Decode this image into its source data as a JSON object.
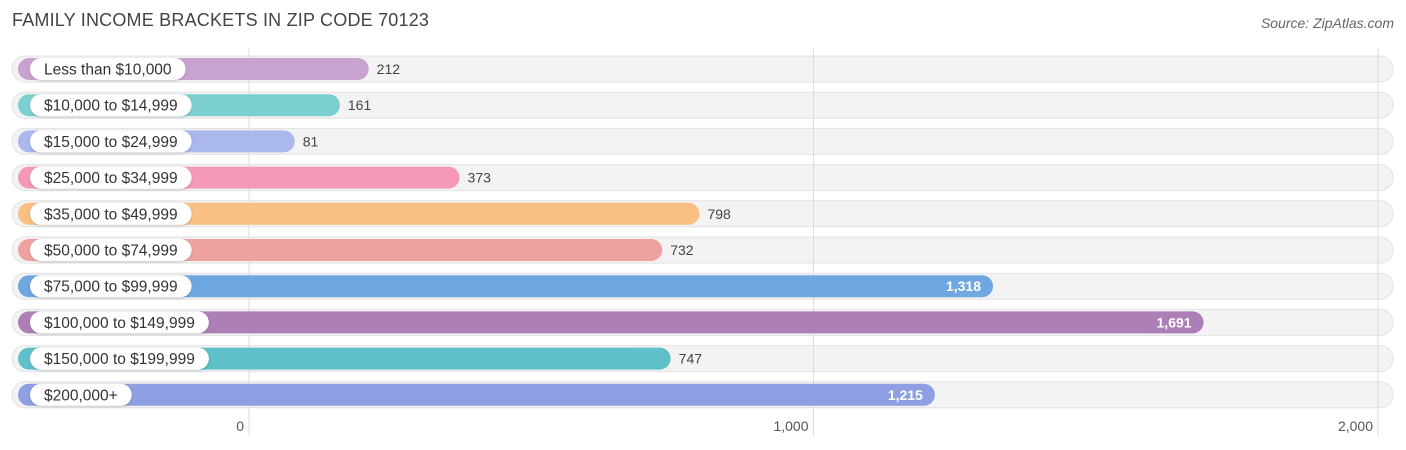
{
  "header": {
    "title": "FAMILY INCOME BRACKETS IN ZIP CODE 70123",
    "source": "Source: ZipAtlas.com"
  },
  "chart_data": {
    "type": "bar",
    "orientation": "horizontal",
    "title": "FAMILY INCOME BRACKETS IN ZIP CODE 70123",
    "categories": [
      "Less than $10,000",
      "$10,000 to $14,999",
      "$15,000 to $24,999",
      "$25,000 to $34,999",
      "$35,000 to $49,999",
      "$50,000 to $74,999",
      "$75,000 to $99,999",
      "$100,000 to $149,999",
      "$150,000 to $199,999",
      "$200,000+"
    ],
    "values": [
      212,
      161,
      81,
      373,
      798,
      732,
      1318,
      1691,
      747,
      1215
    ],
    "value_labels": [
      "212",
      "161",
      "81",
      "373",
      "798",
      "732",
      "1,318",
      "1,691",
      "747",
      "1,215"
    ],
    "colors": [
      "#c9a3cf",
      "#7ccfd1",
      "#aab8ee",
      "#f59ab6",
      "#f9bf83",
      "#eea19f",
      "#6fa7e1",
      "#ad7fb7",
      "#5fc0c9",
      "#8f9fe3"
    ],
    "xlim": [
      0,
      2000
    ],
    "xticks": [
      0,
      1000,
      2000
    ],
    "xtick_labels": [
      "0",
      "1,000",
      "2,000"
    ],
    "grid": true
  }
}
